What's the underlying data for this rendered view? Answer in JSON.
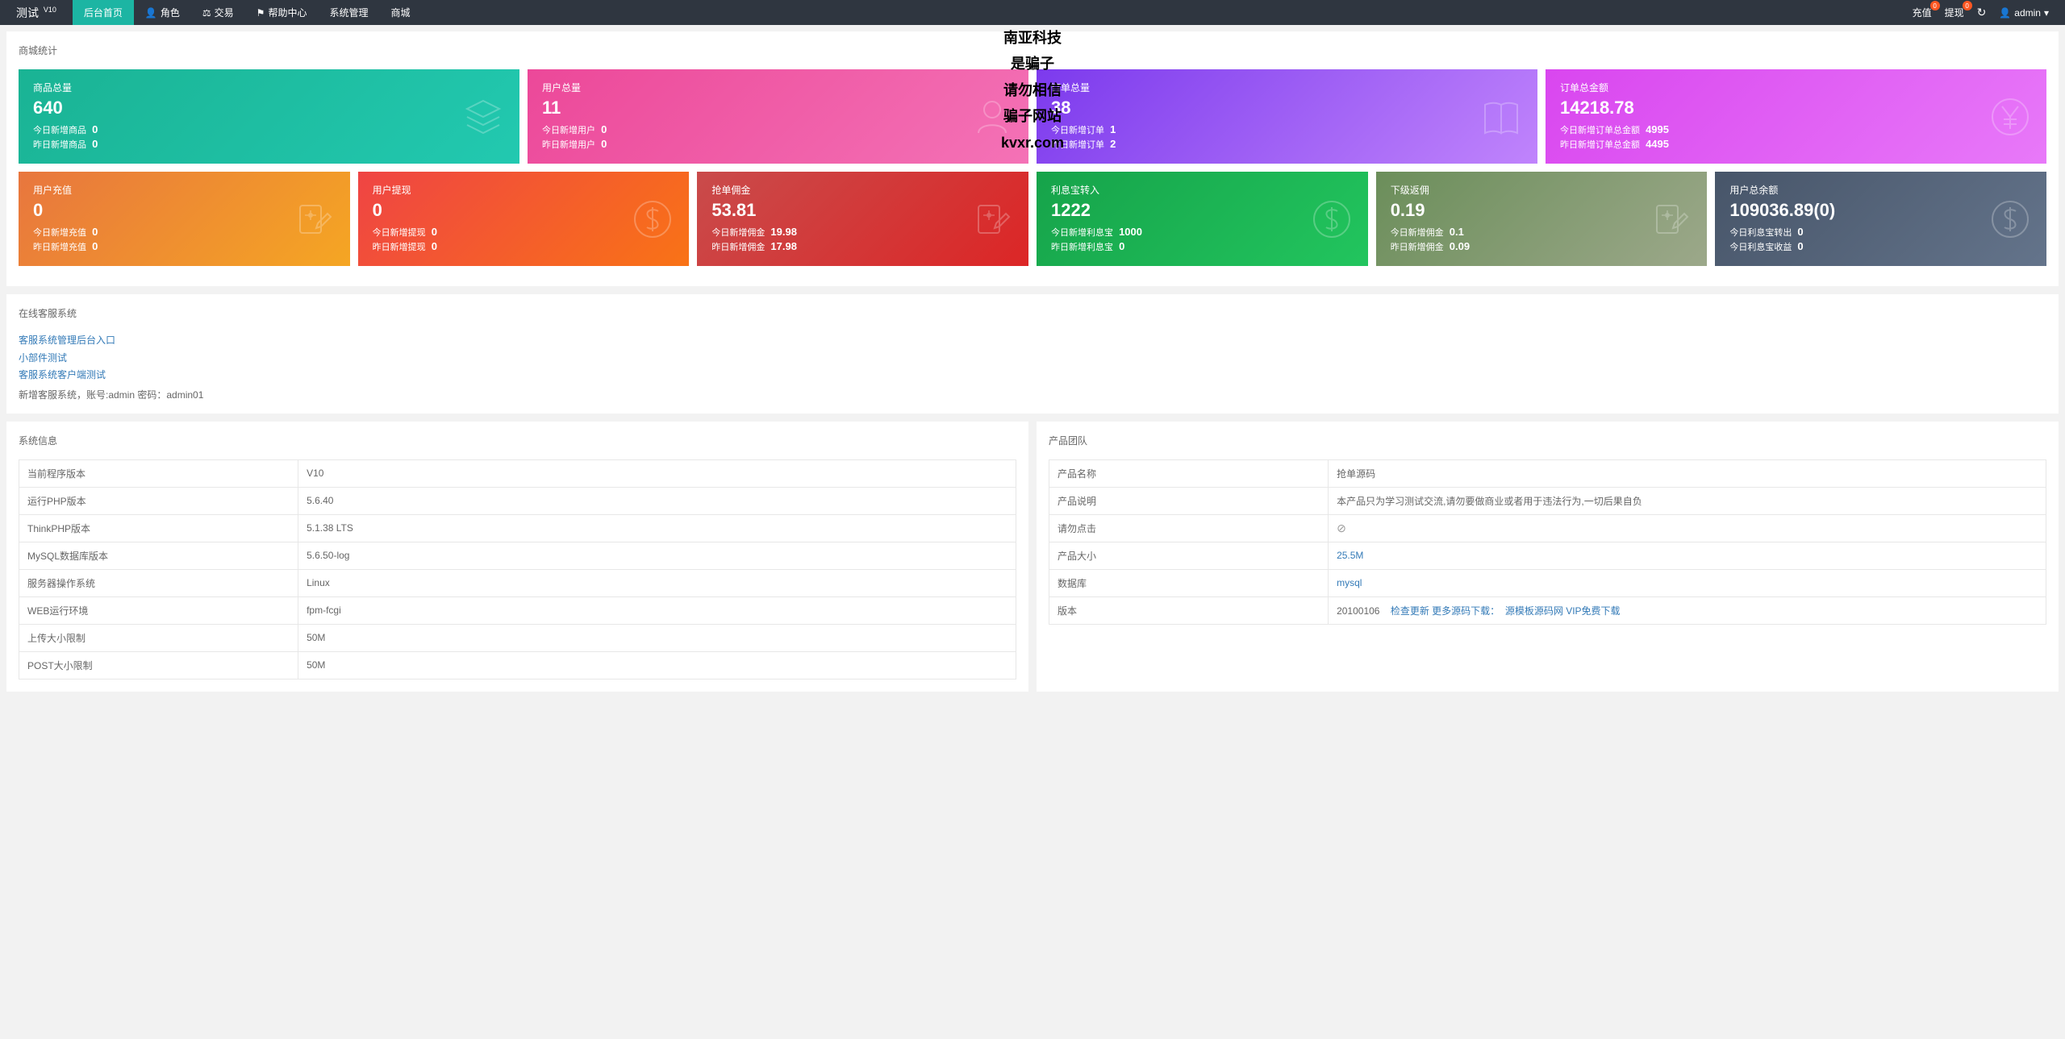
{
  "header": {
    "logo_text": "测试",
    "logo_version": "V10",
    "nav": [
      {
        "label": "后台首页",
        "active": true,
        "icon": ""
      },
      {
        "label": "角色",
        "active": false,
        "icon": "👤"
      },
      {
        "label": "交易",
        "active": false,
        "icon": "⚖"
      },
      {
        "label": "帮助中心",
        "active": false,
        "icon": "⚑"
      },
      {
        "label": "系统管理",
        "active": false,
        "icon": ""
      },
      {
        "label": "商城",
        "active": false,
        "icon": ""
      }
    ],
    "recharge_label": "充值",
    "recharge_badge": "0",
    "withdraw_label": "提现",
    "withdraw_badge": "0",
    "user_label": "admin"
  },
  "watermark": {
    "l1": "南亚科技",
    "l2": "是骗子",
    "l3": "请勿相信",
    "l4": "骗子网站",
    "l5": "kvxr.com"
  },
  "mall_stats": {
    "title": "商城统计",
    "row1": [
      {
        "title": "商品总量",
        "value": "640",
        "sub1_l": "今日新增商品",
        "sub1_v": "0",
        "sub2_l": "昨日新增商品",
        "sub2_v": "0",
        "grad": "g-teal",
        "icon": "layers"
      },
      {
        "title": "用户总量",
        "value": "11",
        "sub1_l": "今日新增用户",
        "sub1_v": "0",
        "sub2_l": "昨日新增用户",
        "sub2_v": "0",
        "grad": "g-pink",
        "icon": "user"
      },
      {
        "title": "订单总量",
        "value": "38",
        "sub1_l": "今日新增订单",
        "sub1_v": "1",
        "sub2_l": "昨日新增订单",
        "sub2_v": "2",
        "grad": "g-purple",
        "icon": "book"
      },
      {
        "title": "订单总金额",
        "value": "14218.78",
        "sub1_l": "今日新增订单总金额",
        "sub1_v": "4995",
        "sub2_l": "昨日新增订单总金额",
        "sub2_v": "4495",
        "grad": "g-magenta",
        "icon": "yen"
      }
    ],
    "row2": [
      {
        "title": "用户充值",
        "value": "0",
        "sub1_l": "今日新增充值",
        "sub1_v": "0",
        "sub2_l": "昨日新增充值",
        "sub2_v": "0",
        "grad": "g-orange",
        "icon": "edit"
      },
      {
        "title": "用户提现",
        "value": "0",
        "sub1_l": "今日新增提现",
        "sub1_v": "0",
        "sub2_l": "昨日新增提现",
        "sub2_v": "0",
        "grad": "g-red-orange",
        "icon": "dollar"
      },
      {
        "title": "抢单佣金",
        "value": "53.81",
        "sub1_l": "今日新增佣金",
        "sub1_v": "19.98",
        "sub2_l": "昨日新增佣金",
        "sub2_v": "17.98",
        "grad": "g-red",
        "icon": "edit"
      },
      {
        "title": "利息宝转入",
        "value": "1222",
        "sub1_l": "今日新增利息宝",
        "sub1_v": "1000",
        "sub2_l": "昨日新增利息宝",
        "sub2_v": "0",
        "grad": "g-green",
        "icon": "dollar"
      },
      {
        "title": "下级返佣",
        "value": "0.19",
        "sub1_l": "今日新增佣金",
        "sub1_v": "0.1",
        "sub2_l": "昨日新增佣金",
        "sub2_v": "0.09",
        "grad": "g-olive",
        "icon": "edit"
      },
      {
        "title": "用户总余额",
        "value": "109036.89(0)",
        "sub1_l": "今日利息宝转出",
        "sub1_v": "0",
        "sub2_l": "今日利息宝收益",
        "sub2_v": "0",
        "grad": "g-gray-blue",
        "icon": "dollar"
      }
    ]
  },
  "kefu": {
    "title": "在线客服系统",
    "links": [
      "客服系统管理后台入口",
      "小部件测试",
      "客服系统客户端测试"
    ],
    "note": "新增客服系统，账号:admin 密码：admin01"
  },
  "sysinfo": {
    "title": "系统信息",
    "rows": [
      {
        "k": "当前程序版本",
        "v": "V10"
      },
      {
        "k": "运行PHP版本",
        "v": "5.6.40"
      },
      {
        "k": "ThinkPHP版本",
        "v": "5.1.38 LTS"
      },
      {
        "k": "MySQL数据库版本",
        "v": "5.6.50-log"
      },
      {
        "k": "服务器操作系统",
        "v": "Linux"
      },
      {
        "k": "WEB运行环境",
        "v": "fpm-fcgi"
      },
      {
        "k": "上传大小限制",
        "v": "50M"
      },
      {
        "k": "POST大小限制",
        "v": "50M"
      }
    ]
  },
  "team": {
    "title": "产品团队",
    "rows": [
      {
        "k": "产品名称",
        "v": "抢单源码",
        "type": "text"
      },
      {
        "k": "产品说明",
        "v": "本产品只为学习测试交流,请勿要做商业或者用于违法行为,一切后果自负",
        "type": "text"
      },
      {
        "k": "请勿点击",
        "v": "⊘",
        "type": "icon"
      },
      {
        "k": "产品大小",
        "v": "25.5M",
        "type": "link"
      },
      {
        "k": "数据库",
        "v": "mysql",
        "type": "link"
      },
      {
        "k": "版本",
        "v": "20100106",
        "type": "version",
        "link1": "检查更新",
        "link2": "更多源码下载：",
        "link3": "源模板源码网 VIP免费下载"
      }
    ]
  }
}
